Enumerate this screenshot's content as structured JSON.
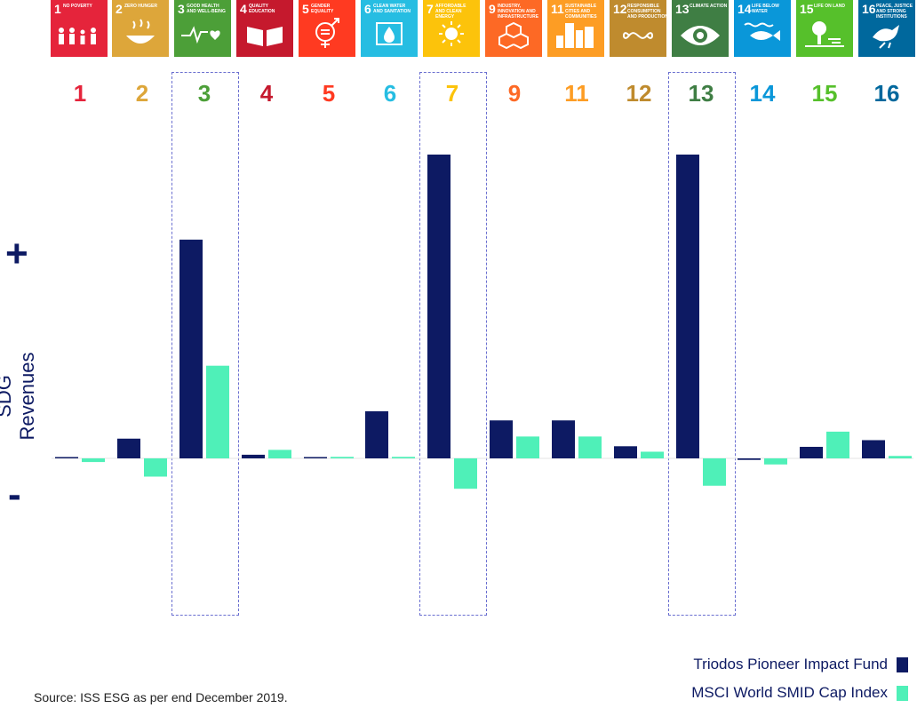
{
  "goals": [
    {
      "num": "1",
      "title": "No Poverty",
      "color": "#e5243b",
      "icon": "family-icon"
    },
    {
      "num": "2",
      "title": "Zero Hunger",
      "color": "#dda63a",
      "icon": "bowl-icon"
    },
    {
      "num": "3",
      "title": "Good Health and Well-Being",
      "color": "#4c9f38",
      "icon": "heartbeat-icon"
    },
    {
      "num": "4",
      "title": "Quality Education",
      "color": "#c5192d",
      "icon": "book-icon"
    },
    {
      "num": "5",
      "title": "Gender Equality",
      "color": "#ff3a21",
      "icon": "gender-equality-icon"
    },
    {
      "num": "6",
      "title": "Clean Water and Sanitation",
      "color": "#26bde2",
      "icon": "water-drop-icon"
    },
    {
      "num": "7",
      "title": "Affordable and Clean Energy",
      "color": "#fcc30b",
      "icon": "sun-icon"
    },
    {
      "num": "9",
      "title": "Industry, Innovation and Infrastructure",
      "color": "#fd6925",
      "icon": "cubes-icon"
    },
    {
      "num": "11",
      "title": "Sustainable Cities and Communities",
      "color": "#fd9d24",
      "icon": "buildings-icon"
    },
    {
      "num": "12",
      "title": "Responsible Consumption and Production",
      "color": "#bf8b2e",
      "icon": "infinity-icon"
    },
    {
      "num": "13",
      "title": "Climate Action",
      "color": "#3f7e44",
      "icon": "eye-globe-icon"
    },
    {
      "num": "14",
      "title": "Life Below Water",
      "color": "#0a97d9",
      "icon": "fish-icon"
    },
    {
      "num": "15",
      "title": "Life On Land",
      "color": "#56c02b",
      "icon": "tree-icon"
    },
    {
      "num": "16",
      "title": "Peace, Justice and Strong Institutions",
      "color": "#00689d",
      "icon": "dove-icon"
    }
  ],
  "axis": {
    "ylabel": "SDG Revenues",
    "plus": "+",
    "minus": "-"
  },
  "legend": {
    "fund_label": "Triodos Pioneer Impact Fund",
    "index_label": "MSCI World SMID Cap Index"
  },
  "source": "Source: ISS ESG as per end December 2019.",
  "colors": {
    "fund": "#0d1a63",
    "index": "#4ff0b8",
    "highlight": "#6a6fd0"
  },
  "chart_data": {
    "type": "bar",
    "categories": [
      "1",
      "2",
      "3",
      "4",
      "5",
      "6",
      "7",
      "9",
      "11",
      "12",
      "13",
      "14",
      "15",
      "16"
    ],
    "ylim": [
      -2.0,
      10.0
    ],
    "grid": false,
    "legend_position": "bottom-right",
    "highlighted_categories": [
      "3",
      "7",
      "13"
    ],
    "series": [
      {
        "name": "Triodos Pioneer Impact Fund",
        "values": [
          0.0,
          0.65,
          7.2,
          0.12,
          0.0,
          1.55,
          10.0,
          1.25,
          1.25,
          0.4,
          10.0,
          -0.05,
          0.38,
          0.6
        ]
      },
      {
        "name": "MSCI World SMID Cap Index",
        "values": [
          -0.12,
          -0.6,
          3.05,
          0.28,
          0.05,
          0.05,
          -1.0,
          0.72,
          0.72,
          0.22,
          -0.9,
          -0.2,
          0.88,
          0.08
        ]
      }
    ]
  }
}
